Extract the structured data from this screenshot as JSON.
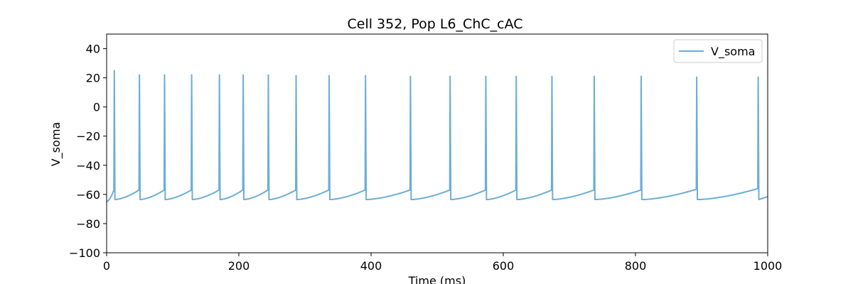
{
  "chart_data": {
    "type": "line",
    "title": "Cell 352, Pop L6_ChC_cAC",
    "xlabel": "Time (ms)",
    "ylabel": "V_soma",
    "xlim": [
      0,
      1000
    ],
    "ylim": [
      -100,
      50
    ],
    "xticks": [
      0,
      200,
      400,
      600,
      800,
      1000
    ],
    "yticks": [
      -100,
      -80,
      -60,
      -40,
      -20,
      0,
      20,
      40
    ],
    "grid": false,
    "legend_position": "top-right",
    "series": [
      {
        "name": "V_soma",
        "color": "#6baed6",
        "resting_potential": -65,
        "after_spike_minimum": -63.5,
        "spikes": [
          {
            "t": 11,
            "peak": 25,
            "threshold": -57
          },
          {
            "t": 49,
            "peak": 22,
            "threshold": -57
          },
          {
            "t": 87,
            "peak": 22,
            "threshold": -57
          },
          {
            "t": 128,
            "peak": 22,
            "threshold": -57
          },
          {
            "t": 170,
            "peak": 22,
            "threshold": -57
          },
          {
            "t": 206,
            "peak": 22,
            "threshold": -57
          },
          {
            "t": 244,
            "peak": 22,
            "threshold": -57
          },
          {
            "t": 286,
            "peak": 21.5,
            "threshold": -57
          },
          {
            "t": 336,
            "peak": 21.5,
            "threshold": -57
          },
          {
            "t": 391,
            "peak": 21.5,
            "threshold": -57
          },
          {
            "t": 459,
            "peak": 21,
            "threshold": -57
          },
          {
            "t": 519,
            "peak": 21,
            "threshold": -57
          },
          {
            "t": 573,
            "peak": 21,
            "threshold": -57
          },
          {
            "t": 619,
            "peak": 21,
            "threshold": -57
          },
          {
            "t": 673,
            "peak": 21,
            "threshold": -57
          },
          {
            "t": 737,
            "peak": 21,
            "threshold": -57
          },
          {
            "t": 808,
            "peak": 21,
            "threshold": -57
          },
          {
            "t": 892,
            "peak": 20.5,
            "threshold": -56.5
          },
          {
            "t": 985,
            "peak": 20.5,
            "threshold": -56
          }
        ],
        "end_value": -61.5
      }
    ]
  }
}
